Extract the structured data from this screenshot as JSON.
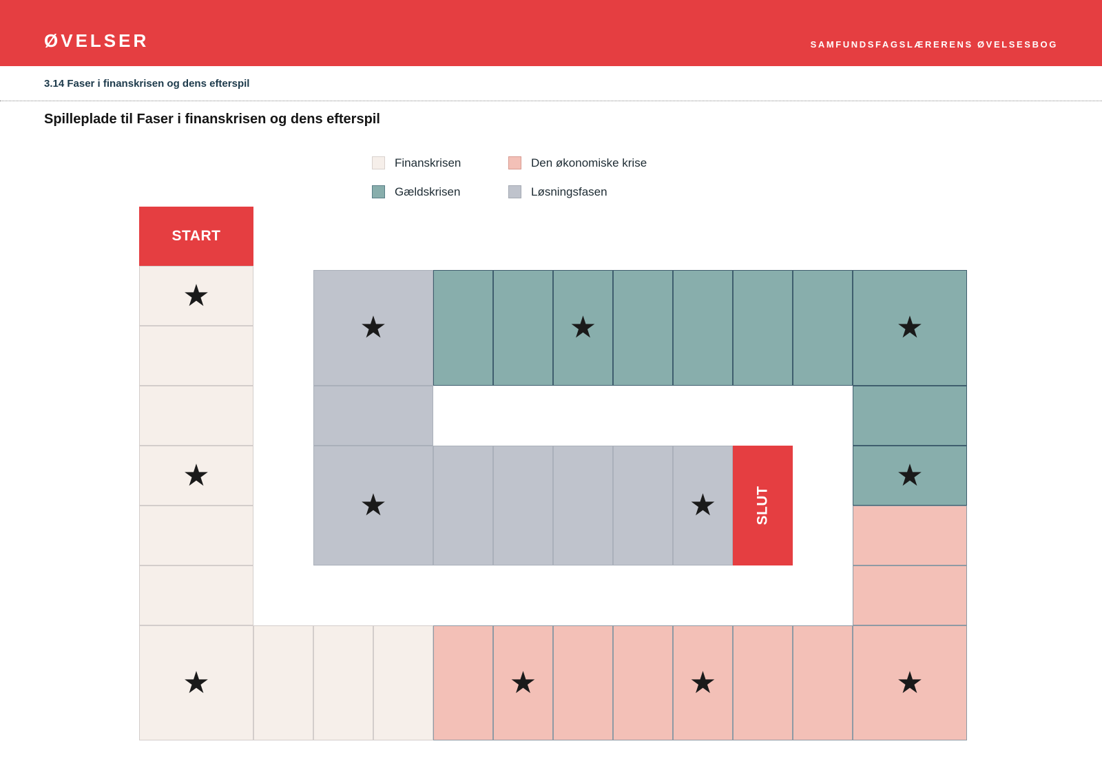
{
  "header": {
    "brand": "ØVELSER",
    "book_title": "SAMFUNDSFAGSLÆRERENS ØVELSESBOG"
  },
  "section_title": "3.14 Faser i finanskrisen og dens efterspil",
  "page_title": "Spilleplade til Faser i finanskrisen og dens efterspil",
  "colors": {
    "accent": "#e53e41",
    "finanskrisen": "#f6efea",
    "den_okonomiske_krise": "#f3c0b7",
    "gaeldskrisen": "#88aeac",
    "losningsfasen": "#bfc3cc"
  },
  "legend": [
    {
      "label": "Finanskrisen",
      "phase": "finanskrisen",
      "color": "#f6efea",
      "border": "#d9d1cd"
    },
    {
      "label": "Den økonomiske krise",
      "phase": "den_okonomiske_krise",
      "color": "#f3c0b7",
      "border": "#d89a91"
    },
    {
      "label": "Gældskrisen",
      "phase": "gaeldskrisen",
      "color": "#88aeac",
      "border": "#587e86"
    },
    {
      "label": "Løsningsfasen",
      "phase": "losningsfasen",
      "color": "#bfc3cc",
      "border": "#a4a9b3"
    }
  ],
  "board": {
    "start_label": "START",
    "end_label": "SLUT",
    "star_icon": "★",
    "fields": [
      {
        "phase": "finanskrisen",
        "star": true
      },
      {
        "phase": "finanskrisen",
        "star": false
      },
      {
        "phase": "finanskrisen",
        "star": false
      },
      {
        "phase": "finanskrisen",
        "star": true
      },
      {
        "phase": "finanskrisen",
        "star": false
      },
      {
        "phase": "finanskrisen",
        "star": false
      },
      {
        "phase": "finanskrisen",
        "star": true
      },
      {
        "phase": "finanskrisen",
        "star": false
      },
      {
        "phase": "finanskrisen",
        "star": false
      },
      {
        "phase": "finanskrisen",
        "star": false
      },
      {
        "phase": "den_okonomiske_krise",
        "star": false
      },
      {
        "phase": "den_okonomiske_krise",
        "star": true
      },
      {
        "phase": "den_okonomiske_krise",
        "star": false
      },
      {
        "phase": "den_okonomiske_krise",
        "star": false
      },
      {
        "phase": "den_okonomiske_krise",
        "star": true
      },
      {
        "phase": "den_okonomiske_krise",
        "star": false
      },
      {
        "phase": "den_okonomiske_krise",
        "star": false
      },
      {
        "phase": "den_okonomiske_krise",
        "star": true
      },
      {
        "phase": "den_okonomiske_krise",
        "star": false
      },
      {
        "phase": "den_okonomiske_krise",
        "star": false
      },
      {
        "phase": "gaeldskrisen",
        "star": true
      },
      {
        "phase": "gaeldskrisen",
        "star": false
      },
      {
        "phase": "gaeldskrisen",
        "star": true
      },
      {
        "phase": "gaeldskrisen",
        "star": false
      },
      {
        "phase": "gaeldskrisen",
        "star": false
      },
      {
        "phase": "gaeldskrisen",
        "star": false
      },
      {
        "phase": "gaeldskrisen",
        "star": false
      },
      {
        "phase": "gaeldskrisen",
        "star": true
      },
      {
        "phase": "gaeldskrisen",
        "star": false
      },
      {
        "phase": "gaeldskrisen",
        "star": false
      },
      {
        "phase": "losningsfasen",
        "star": true
      },
      {
        "phase": "losningsfasen",
        "star": false
      },
      {
        "phase": "losningsfasen",
        "star": true
      },
      {
        "phase": "losningsfasen",
        "star": false
      },
      {
        "phase": "losningsfasen",
        "star": false
      },
      {
        "phase": "losningsfasen",
        "star": false
      },
      {
        "phase": "losningsfasen",
        "star": false
      },
      {
        "phase": "losningsfasen",
        "star": true
      }
    ]
  }
}
